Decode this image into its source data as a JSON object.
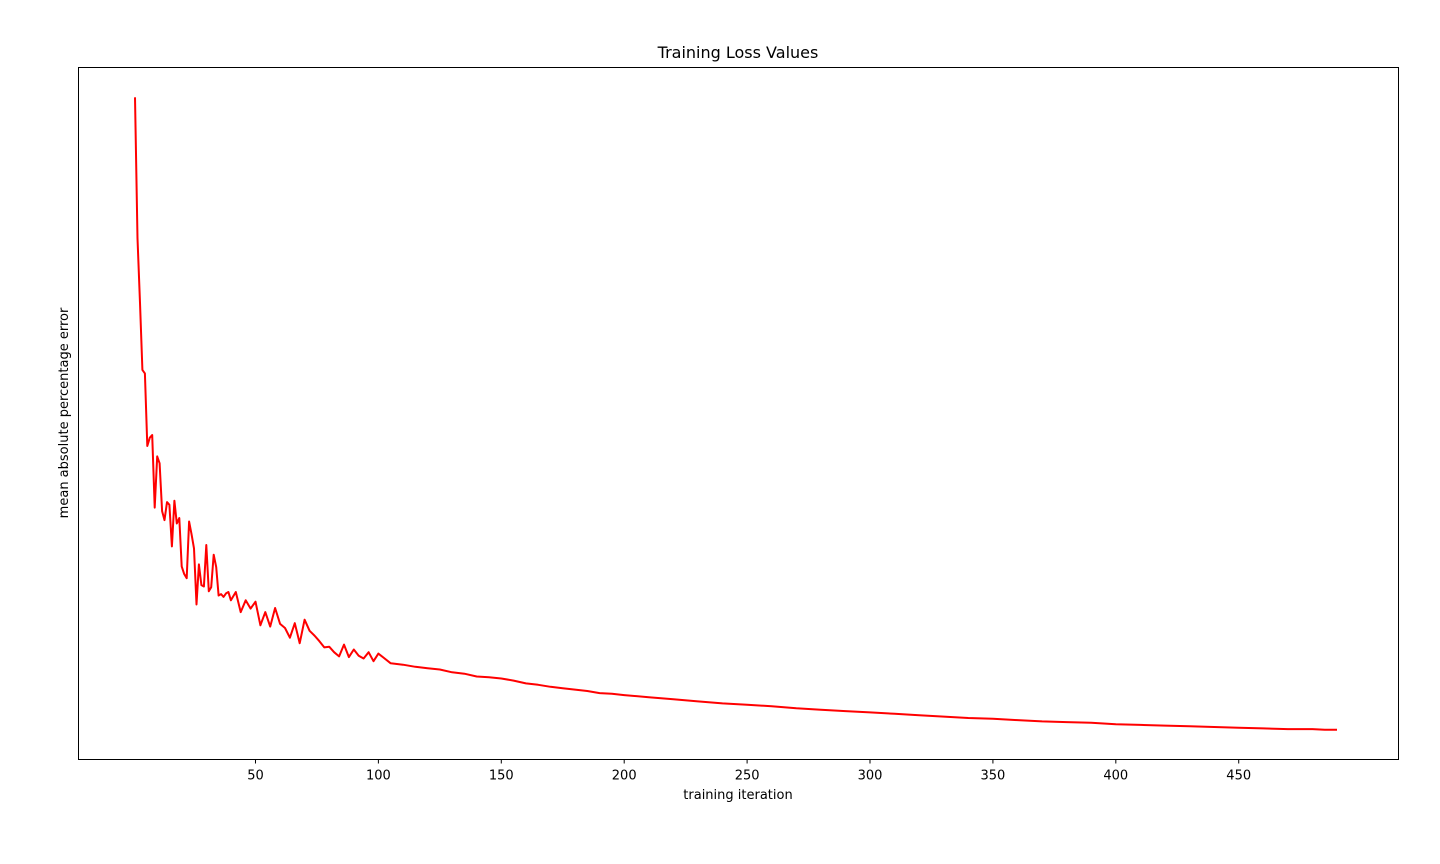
{
  "chart_data": {
    "type": "line",
    "title": "Training Loss Values",
    "xlabel": "training iteration",
    "ylabel": "mean absolute percentage error",
    "x_ticks": [
      50,
      100,
      150,
      200,
      250,
      300,
      350,
      400,
      450
    ],
    "x_tick_labels": [
      "50",
      "100",
      "150",
      "200",
      "250",
      "300",
      "350",
      "400",
      "450"
    ],
    "y_ticks_visible": false,
    "grid": false,
    "legend": "none",
    "xlim": [
      -22,
      515
    ],
    "ylim": [
      0,
      100
    ],
    "series": [
      {
        "color": "#ff0000",
        "x": [
          1,
          2,
          3,
          4,
          5,
          6,
          7,
          8,
          9,
          10,
          11,
          12,
          13,
          14,
          15,
          16,
          17,
          18,
          19,
          20,
          21,
          22,
          23,
          24,
          25,
          26,
          27,
          28,
          29,
          30,
          31,
          32,
          33,
          34,
          35,
          36,
          37,
          38,
          39,
          40,
          42,
          44,
          46,
          48,
          50,
          52,
          54,
          56,
          58,
          60,
          62,
          64,
          66,
          68,
          70,
          72,
          74,
          76,
          78,
          80,
          82,
          84,
          86,
          88,
          90,
          92,
          94,
          96,
          98,
          100,
          105,
          110,
          115,
          120,
          125,
          130,
          135,
          140,
          145,
          150,
          155,
          160,
          165,
          170,
          175,
          180,
          185,
          190,
          195,
          200,
          210,
          220,
          230,
          240,
          250,
          260,
          270,
          280,
          290,
          300,
          310,
          320,
          330,
          340,
          350,
          360,
          370,
          380,
          390,
          400,
          410,
          420,
          430,
          440,
          450,
          460,
          470,
          480,
          485,
          490
        ],
        "y": [
          95.7,
          75.3,
          66.0,
          56.3,
          55.8,
          45.3,
          46.5,
          46.9,
          36.4,
          43.8,
          42.8,
          35.9,
          34.6,
          37.2,
          36.8,
          30.8,
          37.4,
          34.1,
          34.9,
          27.9,
          26.8,
          26.2,
          34.4,
          32.5,
          30.5,
          22.4,
          28.2,
          25.2,
          25.0,
          31.0,
          24.3,
          24.9,
          29.6,
          27.8,
          23.7,
          23.9,
          23.5,
          24.0,
          24.2,
          23.0,
          24.2,
          21.3,
          23.0,
          21.8,
          22.8,
          19.4,
          21.3,
          19.2,
          21.9,
          19.6,
          19.0,
          17.6,
          19.7,
          16.8,
          20.2,
          18.6,
          17.9,
          17.1,
          16.2,
          16.3,
          15.5,
          14.9,
          16.6,
          14.8,
          15.9,
          15.0,
          14.6,
          15.5,
          14.2,
          15.3,
          13.9,
          13.7,
          13.4,
          13.2,
          13.0,
          12.6,
          12.4,
          12.0,
          11.9,
          11.7,
          11.4,
          11.0,
          10.8,
          10.5,
          10.3,
          10.1,
          9.9,
          9.6,
          9.5,
          9.3,
          9.0,
          8.7,
          8.4,
          8.1,
          7.9,
          7.7,
          7.4,
          7.2,
          7.0,
          6.8,
          6.6,
          6.4,
          6.2,
          6.0,
          5.9,
          5.7,
          5.5,
          5.4,
          5.3,
          5.1,
          5.0,
          4.9,
          4.8,
          4.7,
          4.6,
          4.5,
          4.4,
          4.4,
          4.3,
          4.3
        ]
      }
    ]
  }
}
